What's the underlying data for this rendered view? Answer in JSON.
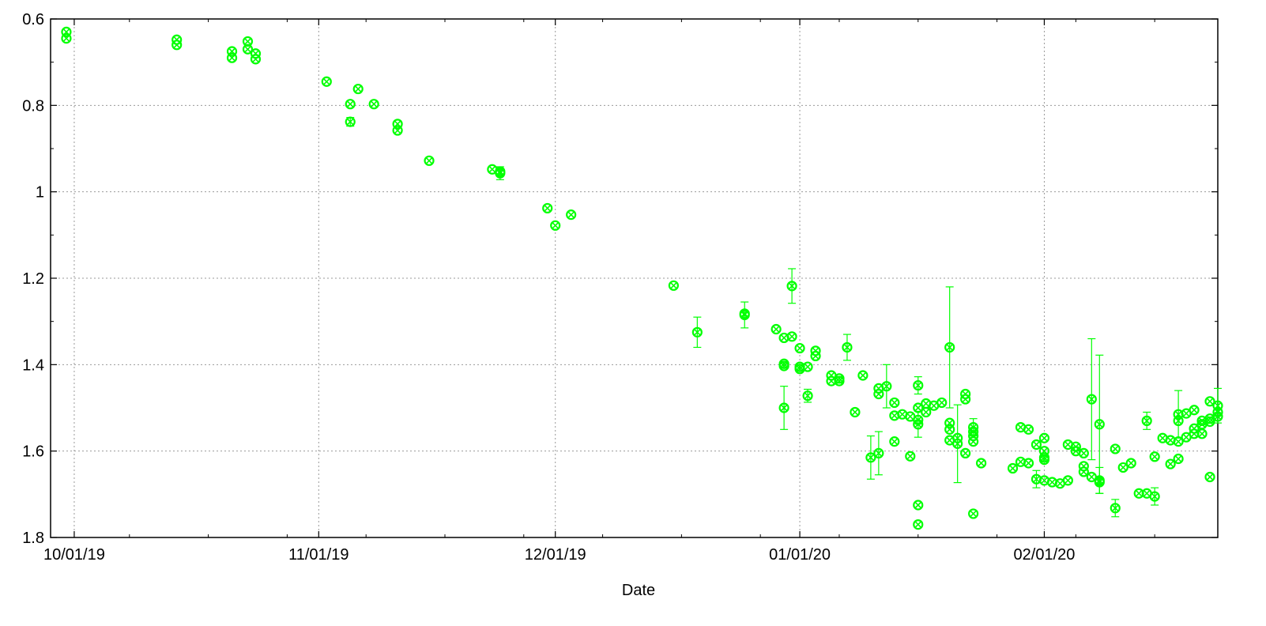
{
  "chart_data": {
    "type": "scatter",
    "xlabel": "Date",
    "ylabel": "",
    "y_inverted": true,
    "ylim": [
      0.6,
      1.8
    ],
    "yticks": [
      0.6,
      0.8,
      1,
      1.2,
      1.4,
      1.6,
      1.8
    ],
    "ytick_labels": [
      "0.6",
      "0.8",
      "1",
      "1.2",
      "1.4",
      "1.6",
      "1.8"
    ],
    "xlim": [
      "2019-09-28",
      "2020-02-23"
    ],
    "xticks": [
      "2019-10-01",
      "2019-11-01",
      "2019-12-01",
      "2020-01-01",
      "2020-02-01"
    ],
    "xtick_labels": [
      "10/01/19",
      "11/01/19",
      "12/01/19",
      "01/01/20",
      "02/01/20"
    ],
    "grid": true,
    "marker_color": "#00ff00",
    "points": [
      {
        "x": "2019-09-30",
        "y": 0.63
      },
      {
        "x": "2019-09-30",
        "y": 0.645
      },
      {
        "x": "2019-10-14",
        "y": 0.648
      },
      {
        "x": "2019-10-14",
        "y": 0.66
      },
      {
        "x": "2019-10-21",
        "y": 0.675
      },
      {
        "x": "2019-10-21",
        "y": 0.69
      },
      {
        "x": "2019-10-23",
        "y": 0.652
      },
      {
        "x": "2019-10-23",
        "y": 0.67
      },
      {
        "x": "2019-10-24",
        "y": 0.68
      },
      {
        "x": "2019-10-24",
        "y": 0.693
      },
      {
        "x": "2019-11-02",
        "y": 0.745
      },
      {
        "x": "2019-11-05",
        "y": 0.797
      },
      {
        "x": "2019-11-05",
        "y": 0.838,
        "err": 0.01
      },
      {
        "x": "2019-11-06",
        "y": 0.762
      },
      {
        "x": "2019-11-08",
        "y": 0.797
      },
      {
        "x": "2019-11-11",
        "y": 0.843
      },
      {
        "x": "2019-11-11",
        "y": 0.858
      },
      {
        "x": "2019-11-15",
        "y": 0.928
      },
      {
        "x": "2019-11-23",
        "y": 0.948
      },
      {
        "x": "2019-11-24",
        "y": 0.957,
        "err": 0.015
      },
      {
        "x": "2019-11-24",
        "y": 0.953
      },
      {
        "x": "2019-11-30",
        "y": 1.038
      },
      {
        "x": "2019-12-01",
        "y": 1.078
      },
      {
        "x": "2019-12-03",
        "y": 1.053
      },
      {
        "x": "2019-12-16",
        "y": 1.217
      },
      {
        "x": "2019-12-19",
        "y": 1.325,
        "err": 0.035
      },
      {
        "x": "2019-12-25",
        "y": 1.285,
        "err": 0.03
      },
      {
        "x": "2019-12-25",
        "y": 1.282
      },
      {
        "x": "2019-12-29",
        "y": 1.318
      },
      {
        "x": "2019-12-30",
        "y": 1.338
      },
      {
        "x": "2019-12-30",
        "y": 1.398
      },
      {
        "x": "2019-12-30",
        "y": 1.403
      },
      {
        "x": "2019-12-30",
        "y": 1.5,
        "err": 0.05
      },
      {
        "x": "2019-12-31",
        "y": 1.335
      },
      {
        "x": "2019-12-31",
        "y": 1.218,
        "err": 0.04
      },
      {
        "x": "2020-01-01",
        "y": 1.362
      },
      {
        "x": "2020-01-01",
        "y": 1.41
      },
      {
        "x": "2020-01-01",
        "y": 1.405
      },
      {
        "x": "2020-01-02",
        "y": 1.472,
        "err": 0.015
      },
      {
        "x": "2020-01-02",
        "y": 1.405
      },
      {
        "x": "2020-01-03",
        "y": 1.368
      },
      {
        "x": "2020-01-03",
        "y": 1.38
      },
      {
        "x": "2020-01-05",
        "y": 1.425
      },
      {
        "x": "2020-01-05",
        "y": 1.438
      },
      {
        "x": "2020-01-06",
        "y": 1.432
      },
      {
        "x": "2020-01-06",
        "y": 1.438
      },
      {
        "x": "2020-01-07",
        "y": 1.36,
        "err": 0.03
      },
      {
        "x": "2020-01-08",
        "y": 1.51
      },
      {
        "x": "2020-01-09",
        "y": 1.425
      },
      {
        "x": "2020-01-10",
        "y": 1.615,
        "err": 0.05
      },
      {
        "x": "2020-01-11",
        "y": 1.605,
        "err": 0.05
      },
      {
        "x": "2020-01-11",
        "y": 1.455
      },
      {
        "x": "2020-01-11",
        "y": 1.468
      },
      {
        "x": "2020-01-12",
        "y": 1.45,
        "err": 0.05
      },
      {
        "x": "2020-01-13",
        "y": 1.488
      },
      {
        "x": "2020-01-13",
        "y": 1.518
      },
      {
        "x": "2020-01-13",
        "y": 1.578
      },
      {
        "x": "2020-01-14",
        "y": 1.515
      },
      {
        "x": "2020-01-15",
        "y": 1.612
      },
      {
        "x": "2020-01-15",
        "y": 1.52
      },
      {
        "x": "2020-01-16",
        "y": 1.528
      },
      {
        "x": "2020-01-16",
        "y": 1.5
      },
      {
        "x": "2020-01-16",
        "y": 1.538,
        "err": 0.03
      },
      {
        "x": "2020-01-16",
        "y": 1.448,
        "err": 0.02
      },
      {
        "x": "2020-01-16",
        "y": 1.77
      },
      {
        "x": "2020-01-16",
        "y": 1.725
      },
      {
        "x": "2020-01-17",
        "y": 1.51
      },
      {
        "x": "2020-01-17",
        "y": 1.49
      },
      {
        "x": "2020-01-18",
        "y": 1.495
      },
      {
        "x": "2020-01-19",
        "y": 1.488
      },
      {
        "x": "2020-01-20",
        "y": 1.36,
        "err": 0.14
      },
      {
        "x": "2020-01-20",
        "y": 1.535
      },
      {
        "x": "2020-01-20",
        "y": 1.55
      },
      {
        "x": "2020-01-20",
        "y": 1.575
      },
      {
        "x": "2020-01-21",
        "y": 1.57
      },
      {
        "x": "2020-01-21",
        "y": 1.583,
        "err": 0.09
      },
      {
        "x": "2020-01-22",
        "y": 1.468
      },
      {
        "x": "2020-01-22",
        "y": 1.48
      },
      {
        "x": "2020-01-22",
        "y": 1.605
      },
      {
        "x": "2020-01-23",
        "y": 1.545,
        "err": 0.02
      },
      {
        "x": "2020-01-23",
        "y": 1.555
      },
      {
        "x": "2020-01-23",
        "y": 1.565
      },
      {
        "x": "2020-01-23",
        "y": 1.578
      },
      {
        "x": "2020-01-23",
        "y": 1.745
      },
      {
        "x": "2020-01-24",
        "y": 1.628
      },
      {
        "x": "2020-01-28",
        "y": 1.64
      },
      {
        "x": "2020-01-29",
        "y": 1.625
      },
      {
        "x": "2020-01-29",
        "y": 1.545
      },
      {
        "x": "2020-01-30",
        "y": 1.55
      },
      {
        "x": "2020-01-30",
        "y": 1.628
      },
      {
        "x": "2020-01-31",
        "y": 1.585
      },
      {
        "x": "2020-01-31",
        "y": 1.665,
        "err": 0.02
      },
      {
        "x": "2020-02-01",
        "y": 1.6
      },
      {
        "x": "2020-02-01",
        "y": 1.615
      },
      {
        "x": "2020-02-01",
        "y": 1.62
      },
      {
        "x": "2020-02-01",
        "y": 1.57
      },
      {
        "x": "2020-02-01",
        "y": 1.668
      },
      {
        "x": "2020-02-02",
        "y": 1.672
      },
      {
        "x": "2020-02-03",
        "y": 1.675
      },
      {
        "x": "2020-02-04",
        "y": 1.668
      },
      {
        "x": "2020-02-04",
        "y": 1.585
      },
      {
        "x": "2020-02-05",
        "y": 1.6
      },
      {
        "x": "2020-02-05",
        "y": 1.59
      },
      {
        "x": "2020-02-06",
        "y": 1.605
      },
      {
        "x": "2020-02-06",
        "y": 1.635
      },
      {
        "x": "2020-02-06",
        "y": 1.648
      },
      {
        "x": "2020-02-07",
        "y": 1.66
      },
      {
        "x": "2020-02-07",
        "y": 1.48,
        "err": 0.14
      },
      {
        "x": "2020-02-08",
        "y": 1.538,
        "err": 0.16
      },
      {
        "x": "2020-02-08",
        "y": 1.672
      },
      {
        "x": "2020-02-08",
        "y": 1.668,
        "err": 0.03
      },
      {
        "x": "2020-02-10",
        "y": 1.595
      },
      {
        "x": "2020-02-10",
        "y": 1.732,
        "err": 0.02
      },
      {
        "x": "2020-02-11",
        "y": 1.638
      },
      {
        "x": "2020-02-12",
        "y": 1.628
      },
      {
        "x": "2020-02-13",
        "y": 1.698
      },
      {
        "x": "2020-02-14",
        "y": 1.53,
        "err": 0.02
      },
      {
        "x": "2020-02-14",
        "y": 1.698
      },
      {
        "x": "2020-02-15",
        "y": 1.613
      },
      {
        "x": "2020-02-15",
        "y": 1.705,
        "err": 0.02
      },
      {
        "x": "2020-02-16",
        "y": 1.57
      },
      {
        "x": "2020-02-17",
        "y": 1.63
      },
      {
        "x": "2020-02-17",
        "y": 1.575
      },
      {
        "x": "2020-02-18",
        "y": 1.578
      },
      {
        "x": "2020-02-18",
        "y": 1.618
      },
      {
        "x": "2020-02-18",
        "y": 1.515,
        "err": 0.055
      },
      {
        "x": "2020-02-18",
        "y": 1.53
      },
      {
        "x": "2020-02-19",
        "y": 1.568
      },
      {
        "x": "2020-02-19",
        "y": 1.513
      },
      {
        "x": "2020-02-20",
        "y": 1.56
      },
      {
        "x": "2020-02-20",
        "y": 1.505
      },
      {
        "x": "2020-02-20",
        "y": 1.548
      },
      {
        "x": "2020-02-21",
        "y": 1.56
      },
      {
        "x": "2020-02-21",
        "y": 1.538
      },
      {
        "x": "2020-02-21",
        "y": 1.53
      },
      {
        "x": "2020-02-22",
        "y": 1.525
      },
      {
        "x": "2020-02-22",
        "y": 1.485
      },
      {
        "x": "2020-02-22",
        "y": 1.66
      },
      {
        "x": "2020-02-22",
        "y": 1.532
      },
      {
        "x": "2020-02-23",
        "y": 1.52
      },
      {
        "x": "2020-02-23",
        "y": 1.495,
        "err": 0.04
      },
      {
        "x": "2020-02-23",
        "y": 1.51
      }
    ]
  }
}
